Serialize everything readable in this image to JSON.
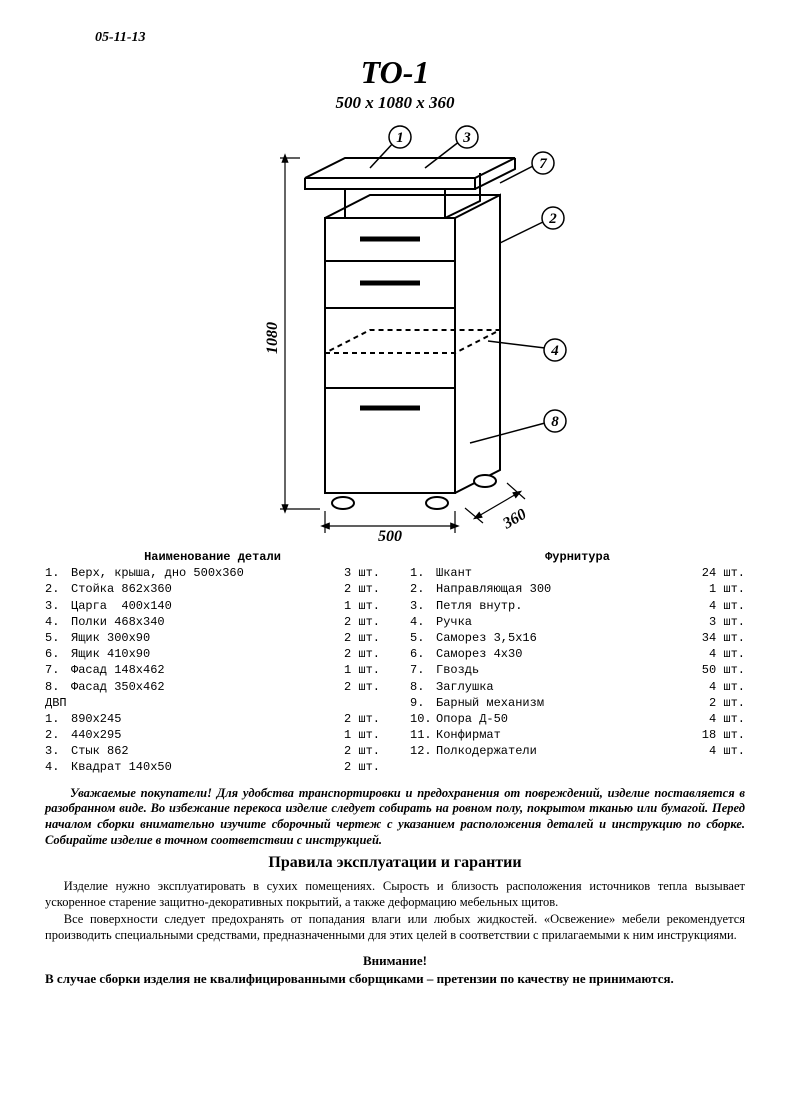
{
  "date": "05-11-13",
  "title": "TO-1",
  "dimensions": "500 x 1080 x 360",
  "drawing": {
    "stroke": "#000000",
    "dim_height": "1080",
    "dim_width": "500",
    "dim_depth": "360",
    "callouts": [
      "1",
      "2",
      "3",
      "4",
      "7",
      "8"
    ]
  },
  "parts": {
    "header": "Наименование  детали",
    "rows": [
      {
        "n": "1.",
        "name": "Верх, крыша, дно 500х360",
        "qty": "3 шт."
      },
      {
        "n": "2.",
        "name": "Стойка 862х360",
        "qty": "2 шт."
      },
      {
        "n": "3.",
        "name": "Царга  400х140",
        "qty": "1 шт."
      },
      {
        "n": "4.",
        "name": "Полки 468х340",
        "qty": "2 шт."
      },
      {
        "n": "5.",
        "name": "Ящик 300х90",
        "qty": "2 шт."
      },
      {
        "n": "6.",
        "name": "Ящик 410х90",
        "qty": "2 шт."
      },
      {
        "n": "7.",
        "name": "Фасад 148х462",
        "qty": "1 шт."
      },
      {
        "n": "8.",
        "name": "Фасад 350х462",
        "qty": "2 шт."
      }
    ],
    "sub_header": "ДВП",
    "sub_rows": [
      {
        "n": "1.",
        "name": "890х245",
        "qty": "2 шт."
      },
      {
        "n": "2.",
        "name": "440х295",
        "qty": "1 шт."
      },
      {
        "n": "3.",
        "name": "Стык 862",
        "qty": "2 шт."
      },
      {
        "n": "4.",
        "name": "Квадрат 140х50",
        "qty": "2 шт."
      }
    ]
  },
  "hardware": {
    "header": "Фурнитура",
    "rows": [
      {
        "n": "1.",
        "name": "Шкант",
        "qty": "24 шт."
      },
      {
        "n": "2.",
        "name": "Направляющая 300",
        "qty": "1 шт."
      },
      {
        "n": "3.",
        "name": "Петля внутр.",
        "qty": "4 шт."
      },
      {
        "n": "4.",
        "name": "Ручка",
        "qty": "3 шт."
      },
      {
        "n": "5.",
        "name": "Саморез 3,5х16",
        "qty": "34 шт."
      },
      {
        "n": "6.",
        "name": "Саморез 4х30",
        "qty": "4 шт."
      },
      {
        "n": "7.",
        "name": "Гвоздь",
        "qty": "50 шт."
      },
      {
        "n": "8.",
        "name": "Заглушка",
        "qty": "4 шт."
      },
      {
        "n": "9.",
        "name": "Барный механизм",
        "qty": "2 шт."
      },
      {
        "n": "10.",
        "name": "Опора Д-50",
        "qty": "4 шт."
      },
      {
        "n": "11.",
        "name": "Конфирмат",
        "qty": "18 шт."
      },
      {
        "n": "12.",
        "name": "Полкодержатели",
        "qty": "4 шт."
      }
    ]
  },
  "note": "Уважаемые покупатели! Для удобства транспортировки и предохранения от повреждений, изделие поставляется в разобранном виде. Во избежание перекоса изделие следует собирать на ровном полу, покрытом тканью или бумагой. Перед началом сборки внимательно изучите сборочный чертеж с указанием расположения деталей и инструкцию по сборке. Собирайте изделие в точном соответствии с инструкцией.",
  "rules_header": "Правила эксплуатации и гарантии",
  "rules_p1": "Изделие нужно эксплуатировать в сухих помещениях. Сырость и близость расположения источников тепла вызывает ускоренное старение защитно-декоративных покрытий, а также деформацию мебельных щитов.",
  "rules_p2": "Все поверхности следует предохранять от попадания влаги или любых жидкостей. «Освежение» мебели рекомендуется производить специальными средствами, предназначенными для этих целей в соответствии с прилагаемыми к ним инструкциями.",
  "warn_header": "Внимание!",
  "warn_text": "В случае сборки изделия не квалифицированными сборщиками – претензии по качеству не принимаются."
}
